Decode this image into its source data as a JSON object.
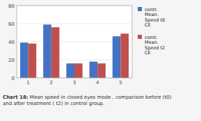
{
  "chart_data": {
    "type": "bar",
    "categories": [
      "1",
      "2",
      "3",
      "4",
      "5"
    ],
    "series": [
      {
        "name": "contr.\nMean.\nSpeed t0\nCE",
        "color": "#4472C4",
        "values": [
          39,
          59,
          16,
          18,
          46
        ]
      },
      {
        "name": "contr.\nMean.\nSpeed t2\nCE",
        "color": "#C0504D",
        "values": [
          38,
          56,
          16,
          16,
          49
        ]
      }
    ],
    "ylim": [
      0,
      80
    ],
    "yticks": [
      0,
      20,
      40,
      60,
      80
    ],
    "grid": true,
    "legend": "right",
    "annotations": [
      "Chart 18:",
      " Mean speed in closed eyes mode , comparison before (t0)\nand after treatment ( t2) in control group."
    ]
  }
}
